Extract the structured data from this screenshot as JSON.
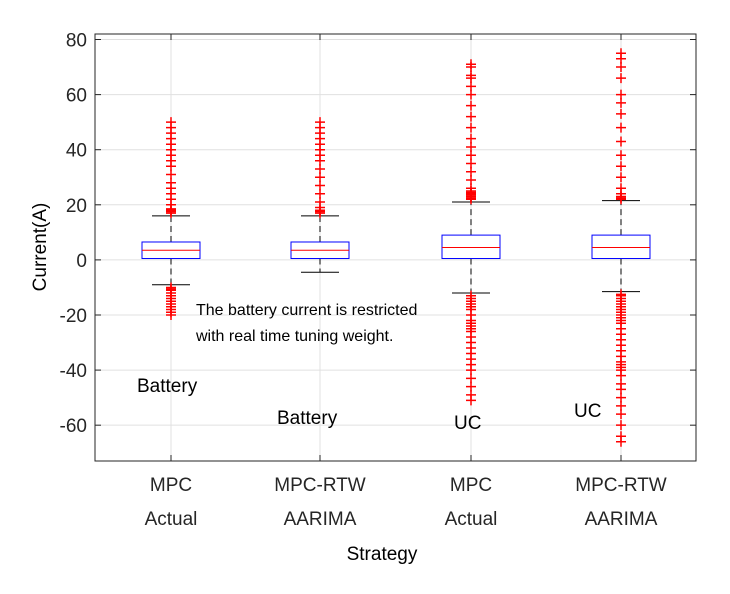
{
  "chart_data": {
    "type": "box",
    "xlabel": "Strategy",
    "ylabel": "Current(A)",
    "ylim": [
      -73,
      82
    ],
    "yticks": [
      -60,
      -40,
      -20,
      0,
      20,
      40,
      60,
      80
    ],
    "grid": true,
    "colors": {
      "box": "#0000ff",
      "median": "#ff0000",
      "outlier": "#ff0000",
      "whisker": "#000000",
      "grid": "#e0e0e0"
    },
    "categories": [
      {
        "line1": "MPC",
        "line2": "Actual"
      },
      {
        "line1": "MPC-RTW",
        "line2": "AARIMA"
      },
      {
        "line1": "MPC",
        "line2": "Actual"
      },
      {
        "line1": "MPC-RTW",
        "line2": "AARIMA"
      }
    ],
    "boxes": [
      {
        "q1": 0.5,
        "median": 3.5,
        "q3": 6.5,
        "whisker_low": -9,
        "whisker_high": 16,
        "outliers_high": [
          17,
          17.5,
          18,
          18.5,
          20,
          22,
          24,
          26,
          28,
          31,
          34,
          36,
          38,
          40,
          42,
          44,
          46,
          48,
          50
        ],
        "outliers_low": [
          -10,
          -10.5,
          -11,
          -12,
          -13,
          -14,
          -15,
          -16,
          -17,
          -18,
          -19,
          -20
        ]
      },
      {
        "q1": 0.5,
        "median": 3.5,
        "q3": 6.5,
        "whisker_low": -4.5,
        "whisker_high": 16,
        "outliers_high": [
          17,
          17.5,
          18,
          19,
          21,
          24,
          27,
          30,
          33,
          36,
          38,
          40,
          42,
          44,
          46,
          48,
          50
        ],
        "outliers_low": []
      },
      {
        "q1": 0.5,
        "median": 4.5,
        "q3": 9,
        "whisker_low": -12,
        "whisker_high": 21,
        "outliers_high": [
          22,
          22.5,
          23,
          23.5,
          24,
          24.5,
          25,
          26,
          29,
          32,
          35,
          38,
          41,
          44,
          48,
          52,
          56,
          60,
          63,
          66,
          67,
          70,
          71
        ],
        "outliers_low": [
          -13,
          -14,
          -15,
          -16,
          -17,
          -18,
          -20,
          -22,
          -23,
          -24,
          -25,
          -26,
          -28,
          -30,
          -32,
          -34,
          -36,
          -38,
          -40,
          -43,
          -46,
          -49,
          -51
        ]
      },
      {
        "q1": 0.5,
        "median": 4.5,
        "q3": 9,
        "whisker_low": -11.5,
        "whisker_high": 21.5,
        "outliers_high": [
          22,
          22.5,
          23,
          24,
          26,
          30,
          34,
          38,
          43,
          48,
          53,
          57,
          60,
          66,
          70,
          73,
          75
        ],
        "outliers_low": [
          -12.5,
          -13,
          -14,
          -15,
          -16,
          -17,
          -18,
          -19,
          -20,
          -21,
          -22,
          -23,
          -25,
          -27,
          -29,
          -31,
          -33,
          -35,
          -37,
          -38,
          -39,
          -40,
          -42,
          -45,
          -47,
          -50,
          -53,
          -56,
          -60,
          -64,
          -66
        ]
      }
    ],
    "annotations": {
      "note_line1": "The battery current is restricted",
      "note_line2": "with real time tuning weight.",
      "label_1": "Battery",
      "label_2": "Battery",
      "label_3": "UC",
      "label_4": "UC"
    }
  }
}
